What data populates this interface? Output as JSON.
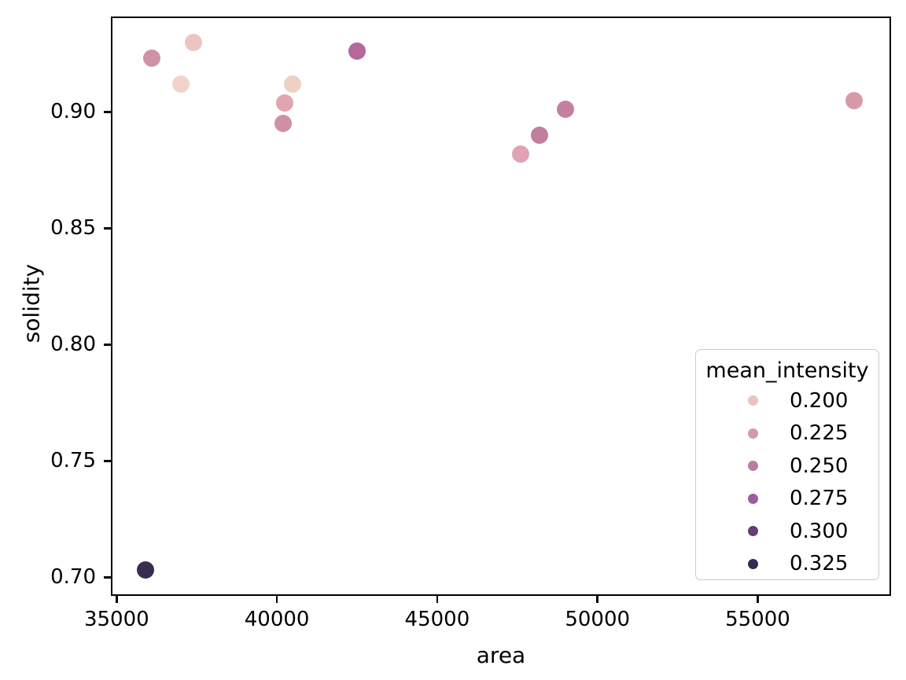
{
  "chart_data": {
    "type": "scatter",
    "title": "",
    "xlabel": "area",
    "ylabel": "solidity",
    "xlim": [
      34820,
      59160
    ],
    "ylim": [
      0.692,
      0.941
    ],
    "x_ticks": [
      35000,
      40000,
      45000,
      50000,
      55000
    ],
    "x_tick_labels": [
      "35000",
      "40000",
      "45000",
      "50000",
      "55000"
    ],
    "y_ticks": [
      0.7,
      0.75,
      0.8,
      0.85,
      0.9
    ],
    "y_tick_labels": [
      "0.70",
      "0.75",
      "0.80",
      "0.85",
      "0.90"
    ],
    "grid": false,
    "hue_variable": "mean_intensity",
    "points": [
      {
        "area": 35900,
        "solidity": 0.703,
        "mean_intensity": 0.32,
        "color": "#3a2c50"
      },
      {
        "area": 36100,
        "solidity": 0.923,
        "mean_intensity": 0.23,
        "color": "#cf93a6"
      },
      {
        "area": 37000,
        "solidity": 0.912,
        "mean_intensity": 0.19,
        "color": "#f2d3cb"
      },
      {
        "area": 37400,
        "solidity": 0.93,
        "mean_intensity": 0.2,
        "color": "#edc5c0"
      },
      {
        "area": 40200,
        "solidity": 0.895,
        "mean_intensity": 0.228,
        "color": "#d18fa4"
      },
      {
        "area": 40250,
        "solidity": 0.904,
        "mean_intensity": 0.213,
        "color": "#e0a5ae"
      },
      {
        "area": 40500,
        "solidity": 0.912,
        "mean_intensity": 0.19,
        "color": "#f0cfc5"
      },
      {
        "area": 42500,
        "solidity": 0.926,
        "mean_intensity": 0.268,
        "color": "#b4689c"
      },
      {
        "area": 47600,
        "solidity": 0.882,
        "mean_intensity": 0.214,
        "color": "#dfa3b2"
      },
      {
        "area": 48200,
        "solidity": 0.89,
        "mean_intensity": 0.248,
        "color": "#c07f9f"
      },
      {
        "area": 49000,
        "solidity": 0.901,
        "mean_intensity": 0.247,
        "color": "#c480a2"
      },
      {
        "area": 58000,
        "solidity": 0.905,
        "mean_intensity": 0.22,
        "color": "#d89aa7"
      }
    ],
    "legend": {
      "title": "mean_intensity",
      "position": "lower right",
      "entries": [
        {
          "label": "0.200",
          "color": "#eac3c0"
        },
        {
          "label": "0.225",
          "color": "#d598ad"
        },
        {
          "label": "0.250",
          "color": "#bf7aa2"
        },
        {
          "label": "0.275",
          "color": "#9c5c9f"
        },
        {
          "label": "0.300",
          "color": "#623e72"
        },
        {
          "label": "0.325",
          "color": "#342a4e"
        }
      ]
    }
  }
}
